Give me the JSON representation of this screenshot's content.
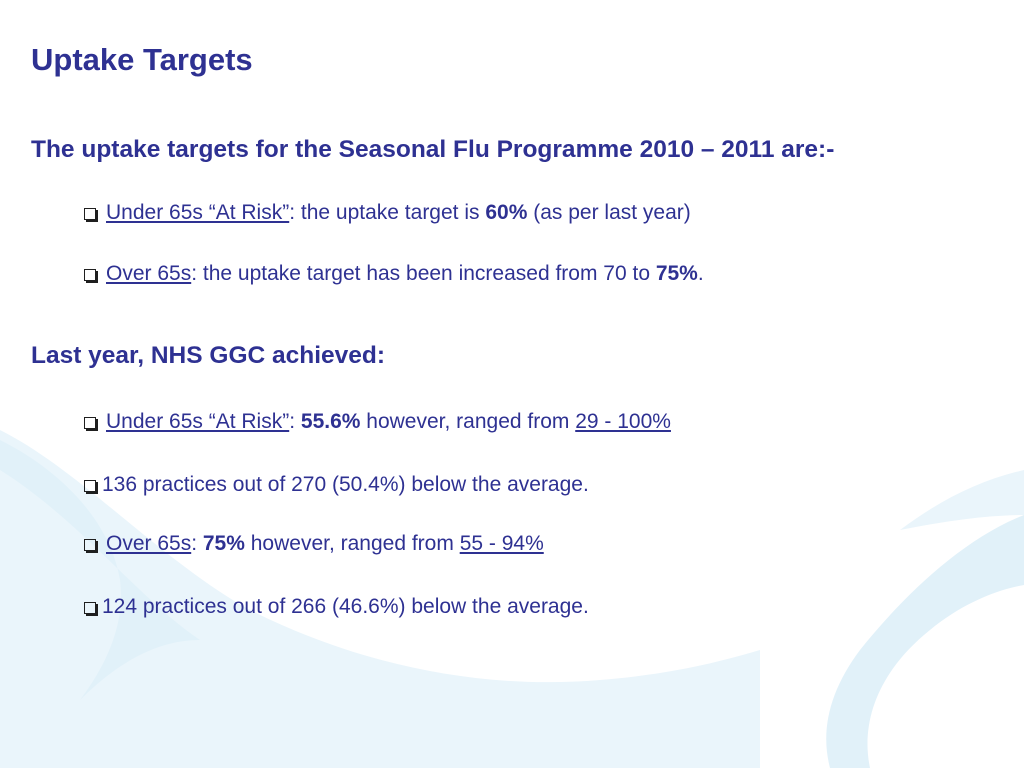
{
  "title": "Uptake Targets",
  "section1": {
    "heading": "The uptake targets for the Seasonal Flu Programme 2010 – 2011 are:-",
    "items": [
      {
        "label": "Under 65s “At Risk”",
        "text_before": ": the uptake target is ",
        "value": "60%",
        "text_after": " (as per last year)"
      },
      {
        "label": "Over 65s",
        "text_before": ": the uptake target has been increased from 70 to ",
        "value": "75%",
        "text_after": "."
      }
    ]
  },
  "section2": {
    "heading": "Last year, NHS GGC achieved:",
    "items": [
      {
        "label": "Under 65s “At Risk”",
        "sep": ": ",
        "value": "55.6%",
        "text_mid": " however, ranged from ",
        "range": "29 - 100%"
      },
      {
        "text": "136 practices out of 270 (50.4%) below the average."
      },
      {
        "label": "Over 65s",
        "sep": ": ",
        "value": "75%",
        "text_mid": " however, ranged from ",
        "range": "55 - 94%"
      },
      {
        "text": "124 practices out of 266 (46.6%) below the average."
      }
    ]
  },
  "colors": {
    "text": "#2e3192",
    "swoosh": "#e3f2fa"
  },
  "icons": {
    "bullet": "checkbox-bullet-icon"
  }
}
